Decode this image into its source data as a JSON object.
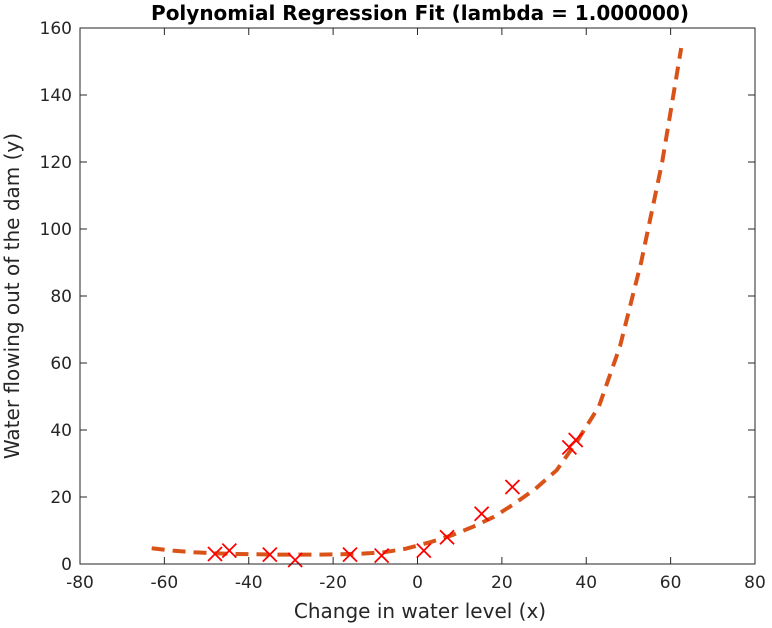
{
  "chart_data": {
    "type": "scatter",
    "title": "Polynomial Regression Fit (lambda = 1.000000)",
    "xlabel": "Change in water level (x)",
    "ylabel": "Water flowing out of the dam (y)",
    "xlim": [
      -80,
      80
    ],
    "ylim": [
      0,
      160
    ],
    "xticks": [
      "-80",
      "-60",
      "-40",
      "-20",
      "0",
      "20",
      "40",
      "60",
      "80"
    ],
    "yticks": [
      "0",
      "20",
      "40",
      "60",
      "80",
      "100",
      "120",
      "140",
      "160"
    ],
    "grid": false,
    "series": [
      {
        "kind": "markers",
        "marker": "x",
        "color": "#ff0000",
        "points": [
          [
            -48,
            3
          ],
          [
            -44.6,
            4
          ],
          [
            -35,
            2.8
          ],
          [
            -29,
            1.2
          ],
          [
            -16,
            2.8
          ],
          [
            -8.5,
            2.5
          ],
          [
            1.5,
            4
          ],
          [
            7,
            8
          ],
          [
            15.2,
            15
          ],
          [
            22.5,
            23
          ],
          [
            36,
            34.8
          ],
          [
            37.5,
            37
          ]
        ]
      },
      {
        "kind": "fit-line",
        "style": "dashed",
        "color": "#d95319",
        "points": [
          [
            -63,
            4.7
          ],
          [
            -58,
            4.0
          ],
          [
            -53,
            3.5
          ],
          [
            -48,
            3.2
          ],
          [
            -43,
            3.0
          ],
          [
            -38,
            2.9
          ],
          [
            -33,
            2.8
          ],
          [
            -28,
            2.8
          ],
          [
            -23,
            2.8
          ],
          [
            -18,
            2.9
          ],
          [
            -13,
            3.1
          ],
          [
            -8,
            3.5
          ],
          [
            -3,
            4.5
          ],
          [
            0,
            5.5
          ],
          [
            3,
            6.5
          ],
          [
            8,
            8.5
          ],
          [
            13,
            11
          ],
          [
            18,
            14
          ],
          [
            23,
            18
          ],
          [
            28,
            22.5
          ],
          [
            33,
            28
          ],
          [
            38,
            37
          ],
          [
            43,
            47
          ],
          [
            48,
            65
          ],
          [
            53,
            90
          ],
          [
            58,
            120
          ],
          [
            62.5,
            154
          ]
        ]
      }
    ]
  }
}
